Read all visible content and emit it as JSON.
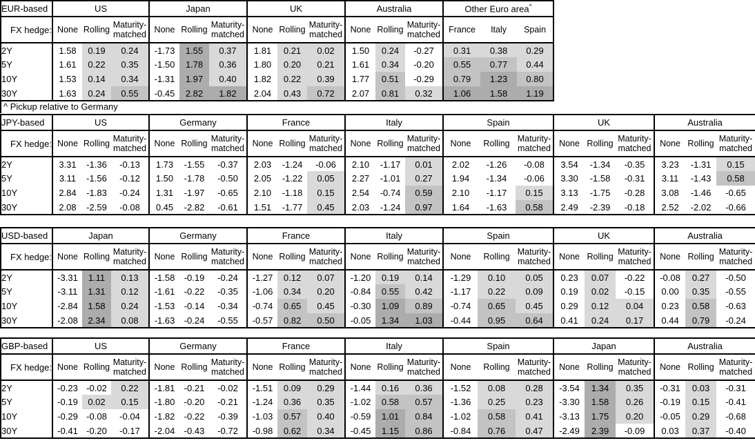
{
  "note": "^ Pickup relative to Germany",
  "fx_hedge_label": "FX hedge:",
  "tenors": [
    "2Y",
    "5Y",
    "10Y",
    "30Y"
  ],
  "hedge_columns": [
    "None",
    "Rolling",
    "Maturity-matched"
  ],
  "shading": {
    "colors": {
      "light": "#d9d9d9",
      "medium": "#c3c3c3",
      "dark": "#acacac",
      "none": "#ffffff"
    },
    "thresholds": {
      "light_min": 0.0,
      "medium_min": 0.5,
      "dark_min": 1.0
    },
    "rule": "Rolling / Maturity-matched / pickup columns shaded by value; None columns unshaded"
  },
  "tables": [
    {
      "base": "EUR-based",
      "groups": [
        {
          "name": "US",
          "cols": [
            "None",
            "Rolling",
            "Maturity-matched"
          ],
          "shade_all": false,
          "rows": [
            [
              1.58,
              0.19,
              0.24
            ],
            [
              1.61,
              0.22,
              0.35
            ],
            [
              1.53,
              0.14,
              0.34
            ],
            [
              1.63,
              0.24,
              0.55
            ]
          ]
        },
        {
          "name": "Japan",
          "cols": [
            "None",
            "Rolling",
            "Maturity-matched"
          ],
          "shade_all": false,
          "rows": [
            [
              -1.73,
              1.55,
              0.37
            ],
            [
              -1.5,
              1.78,
              0.36
            ],
            [
              -1.31,
              1.97,
              0.4
            ],
            [
              -0.45,
              2.82,
              1.82
            ]
          ]
        },
        {
          "name": "UK",
          "cols": [
            "None",
            "Rolling",
            "Maturity-matched"
          ],
          "shade_all": false,
          "rows": [
            [
              1.81,
              0.21,
              0.02
            ],
            [
              1.8,
              0.2,
              0.21
            ],
            [
              1.82,
              0.22,
              0.39
            ],
            [
              2.04,
              0.43,
              0.72
            ]
          ]
        },
        {
          "name": "Australia",
          "cols": [
            "None",
            "Rolling",
            "Maturity-matched"
          ],
          "shade_all": false,
          "rows": [
            [
              1.5,
              0.24,
              -0.27
            ],
            [
              1.61,
              0.34,
              -0.2
            ],
            [
              1.77,
              0.51,
              -0.29
            ],
            [
              2.07,
              0.81,
              0.32
            ]
          ]
        },
        {
          "name": "Other Euro area",
          "sup": "^",
          "cols": [
            "France",
            "Italy",
            "Spain"
          ],
          "shade_all": true,
          "rows": [
            [
              0.31,
              0.38,
              0.29
            ],
            [
              0.55,
              0.77,
              0.44
            ],
            [
              0.79,
              1.23,
              0.8
            ],
            [
              1.06,
              1.58,
              1.19
            ]
          ]
        }
      ]
    },
    {
      "base": "JPY-based",
      "groups": [
        {
          "name": "US",
          "cols": [
            "None",
            "Rolling",
            "Maturity-matched"
          ],
          "shade_all": false,
          "rows": [
            [
              3.31,
              -1.36,
              -0.13
            ],
            [
              3.11,
              -1.56,
              -0.12
            ],
            [
              2.84,
              -1.83,
              -0.24
            ],
            [
              2.08,
              -2.59,
              -0.08
            ]
          ]
        },
        {
          "name": "Germany",
          "cols": [
            "None",
            "Rolling",
            "Maturity-matched"
          ],
          "shade_all": false,
          "rows": [
            [
              1.73,
              -1.55,
              -0.37
            ],
            [
              1.5,
              -1.78,
              -0.5
            ],
            [
              1.31,
              -1.97,
              -0.65
            ],
            [
              0.45,
              -2.82,
              -0.61
            ]
          ]
        },
        {
          "name": "France",
          "cols": [
            "None",
            "Rolling",
            "Maturity-matched"
          ],
          "shade_all": false,
          "rows": [
            [
              2.03,
              -1.24,
              -0.06
            ],
            [
              2.05,
              -1.22,
              0.05
            ],
            [
              2.1,
              -1.18,
              0.15
            ],
            [
              1.51,
              -1.77,
              0.45
            ]
          ]
        },
        {
          "name": "Italy",
          "cols": [
            "None",
            "Rolling",
            "Maturity-matched"
          ],
          "shade_all": false,
          "rows": [
            [
              2.1,
              -1.17,
              0.01
            ],
            [
              2.27,
              -1.01,
              0.27
            ],
            [
              2.54,
              -0.74,
              0.59
            ],
            [
              2.03,
              -1.24,
              0.97
            ]
          ]
        },
        {
          "name": "Spain",
          "cols": [
            "None",
            "Rolling",
            "Maturity-matched"
          ],
          "shade_all": false,
          "rows": [
            [
              2.02,
              -1.26,
              -0.08
            ],
            [
              1.94,
              -1.34,
              -0.06
            ],
            [
              2.1,
              -1.17,
              0.15
            ],
            [
              1.64,
              -1.63,
              0.58
            ]
          ]
        },
        {
          "name": "UK",
          "cols": [
            "None",
            "Rolling",
            "Maturity-matched"
          ],
          "shade_all": false,
          "rows": [
            [
              3.54,
              -1.34,
              -0.35
            ],
            [
              3.3,
              -1.58,
              -0.31
            ],
            [
              3.13,
              -1.75,
              -0.28
            ],
            [
              2.49,
              -2.39,
              -0.18
            ]
          ]
        },
        {
          "name": "Australia",
          "cols": [
            "None",
            "Rolling",
            "Maturity-matched"
          ],
          "shade_all": false,
          "rows": [
            [
              3.23,
              -1.31,
              0.15
            ],
            [
              3.11,
              -1.43,
              0.58
            ],
            [
              3.08,
              -1.46,
              -0.65
            ],
            [
              2.52,
              -2.02,
              -0.66
            ]
          ]
        }
      ]
    },
    {
      "base": "USD-based",
      "groups": [
        {
          "name": "Japan",
          "cols": [
            "None",
            "Rolling",
            "Maturity-matched"
          ],
          "shade_all": false,
          "rows": [
            [
              -3.31,
              1.11,
              0.13
            ],
            [
              -3.11,
              1.31,
              0.12
            ],
            [
              -2.84,
              1.58,
              0.24
            ],
            [
              -2.08,
              2.34,
              0.08
            ]
          ]
        },
        {
          "name": "Germany",
          "cols": [
            "None",
            "Rolling",
            "Maturity-matched"
          ],
          "shade_all": false,
          "rows": [
            [
              -1.58,
              -0.19,
              -0.24
            ],
            [
              -1.61,
              -0.22,
              -0.35
            ],
            [
              -1.53,
              -0.14,
              -0.34
            ],
            [
              -1.63,
              -0.24,
              -0.55
            ]
          ]
        },
        {
          "name": "France",
          "cols": [
            "None",
            "Rolling",
            "Maturity-matched"
          ],
          "shade_all": false,
          "rows": [
            [
              -1.27,
              0.12,
              0.07
            ],
            [
              -1.06,
              0.34,
              0.2
            ],
            [
              -0.74,
              0.65,
              0.45
            ],
            [
              -0.57,
              0.82,
              0.5
            ]
          ]
        },
        {
          "name": "Italy",
          "cols": [
            "None",
            "Rolling",
            "Maturity-matched"
          ],
          "shade_all": false,
          "rows": [
            [
              -1.2,
              0.19,
              0.14
            ],
            [
              -0.84,
              0.55,
              0.42
            ],
            [
              -0.3,
              1.09,
              0.89
            ],
            [
              -0.05,
              1.34,
              1.03
            ]
          ]
        },
        {
          "name": "Spain",
          "cols": [
            "None",
            "Rolling",
            "Maturity-matched"
          ],
          "shade_all": false,
          "rows": [
            [
              -1.29,
              0.1,
              0.05
            ],
            [
              -1.17,
              0.22,
              0.09
            ],
            [
              -0.74,
              0.65,
              0.45
            ],
            [
              -0.44,
              0.95,
              0.64
            ]
          ]
        },
        {
          "name": "UK",
          "cols": [
            "None",
            "Rolling",
            "Maturity-matched"
          ],
          "shade_all": false,
          "rows": [
            [
              0.23,
              0.07,
              -0.22
            ],
            [
              0.19,
              0.02,
              -0.15
            ],
            [
              0.29,
              0.12,
              0.04
            ],
            [
              0.41,
              0.24,
              0.17
            ]
          ]
        },
        {
          "name": "Australia",
          "cols": [
            "None",
            "Rolling",
            "Maturity-matched"
          ],
          "shade_all": false,
          "rows": [
            [
              -0.08,
              0.27,
              -0.5
            ],
            [
              0.0,
              0.35,
              -0.55
            ],
            [
              0.23,
              0.58,
              -0.63
            ],
            [
              0.44,
              0.79,
              -0.24
            ]
          ]
        }
      ]
    },
    {
      "base": "GBP-based",
      "groups": [
        {
          "name": "US",
          "cols": [
            "None",
            "Rolling",
            "Maturity-matched"
          ],
          "shade_all": false,
          "rows": [
            [
              -0.23,
              -0.02,
              0.22
            ],
            [
              -0.19,
              0.02,
              0.15
            ],
            [
              -0.29,
              -0.08,
              -0.04
            ],
            [
              -0.41,
              -0.2,
              -0.17
            ]
          ]
        },
        {
          "name": "Germany",
          "cols": [
            "None",
            "Rolling",
            "Maturity-matched"
          ],
          "shade_all": false,
          "rows": [
            [
              -1.81,
              -0.21,
              -0.02
            ],
            [
              -1.8,
              -0.2,
              -0.21
            ],
            [
              -1.82,
              -0.22,
              -0.39
            ],
            [
              -2.04,
              -0.43,
              -0.72
            ]
          ]
        },
        {
          "name": "France",
          "cols": [
            "None",
            "Rolling",
            "Maturity-matched"
          ],
          "shade_all": false,
          "rows": [
            [
              -1.51,
              0.09,
              0.29
            ],
            [
              -1.24,
              0.36,
              0.35
            ],
            [
              -1.03,
              0.57,
              0.4
            ],
            [
              -0.98,
              0.62,
              0.34
            ]
          ]
        },
        {
          "name": "Italy",
          "cols": [
            "None",
            "Rolling",
            "Maturity-matched"
          ],
          "shade_all": false,
          "rows": [
            [
              -1.44,
              0.16,
              0.36
            ],
            [
              -1.02,
              0.58,
              0.57
            ],
            [
              -0.59,
              1.01,
              0.84
            ],
            [
              -0.45,
              1.15,
              0.86
            ]
          ]
        },
        {
          "name": "Spain",
          "cols": [
            "None",
            "Rolling",
            "Maturity-matched"
          ],
          "shade_all": false,
          "rows": [
            [
              -1.52,
              0.08,
              0.28
            ],
            [
              -1.36,
              0.25,
              0.23
            ],
            [
              -1.02,
              0.58,
              0.41
            ],
            [
              -0.84,
              0.76,
              0.47
            ]
          ]
        },
        {
          "name": "Japan",
          "cols": [
            "None",
            "Rolling",
            "Maturity-matched"
          ],
          "shade_all": false,
          "rows": [
            [
              -3.54,
              1.34,
              0.35
            ],
            [
              -3.3,
              1.58,
              0.26
            ],
            [
              -3.13,
              1.75,
              0.2
            ],
            [
              -2.49,
              2.39,
              -0.09
            ]
          ]
        },
        {
          "name": "Australia",
          "cols": [
            "None",
            "Rolling",
            "Maturity-matched"
          ],
          "shade_all": false,
          "rows": [
            [
              -0.31,
              0.03,
              -0.31
            ],
            [
              -0.19,
              0.15,
              -0.41
            ],
            [
              -0.05,
              0.29,
              -0.68
            ],
            [
              0.03,
              0.37,
              -0.4
            ]
          ]
        }
      ]
    }
  ]
}
